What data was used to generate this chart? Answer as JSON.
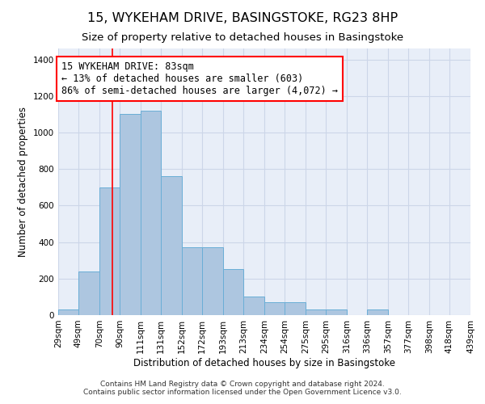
{
  "title": "15, WYKEHAM DRIVE, BASINGSTOKE, RG23 8HP",
  "subtitle": "Size of property relative to detached houses in Basingstoke",
  "xlabel": "Distribution of detached houses by size in Basingstoke",
  "ylabel": "Number of detached properties",
  "footnote1": "Contains HM Land Registry data © Crown copyright and database right 2024.",
  "footnote2": "Contains public sector information licensed under the Open Government Licence v3.0.",
  "bin_edges": [
    29,
    49,
    70,
    90,
    111,
    131,
    152,
    172,
    193,
    213,
    234,
    254,
    275,
    295,
    316,
    336,
    357,
    377,
    398,
    418,
    439
  ],
  "bin_labels": [
    "29sqm",
    "49sqm",
    "70sqm",
    "90sqm",
    "111sqm",
    "131sqm",
    "152sqm",
    "172sqm",
    "193sqm",
    "213sqm",
    "234sqm",
    "254sqm",
    "275sqm",
    "295sqm",
    "316sqm",
    "336sqm",
    "357sqm",
    "377sqm",
    "398sqm",
    "418sqm",
    "439sqm"
  ],
  "bar_heights": [
    30,
    240,
    700,
    1100,
    1120,
    760,
    370,
    370,
    250,
    100,
    70,
    70,
    30,
    30,
    0,
    30,
    0,
    0,
    0,
    0
  ],
  "bar_color": "#adc6e0",
  "bar_edgecolor": "#6aaed6",
  "ylim": [
    0,
    1460
  ],
  "yticks": [
    0,
    200,
    400,
    600,
    800,
    1000,
    1200,
    1400
  ],
  "property_line_x": 83,
  "annotation_text": "15 WYKEHAM DRIVE: 83sqm\n← 13% of detached houses are smaller (603)\n86% of semi-detached houses are larger (4,072) →",
  "grid_color": "#ccd6e8",
  "background_color": "#e8eef8",
  "title_fontsize": 11.5,
  "subtitle_fontsize": 9.5,
  "axis_label_fontsize": 8.5,
  "tick_fontsize": 7.5,
  "annotation_fontsize": 8.5,
  "footnote_fontsize": 6.5
}
